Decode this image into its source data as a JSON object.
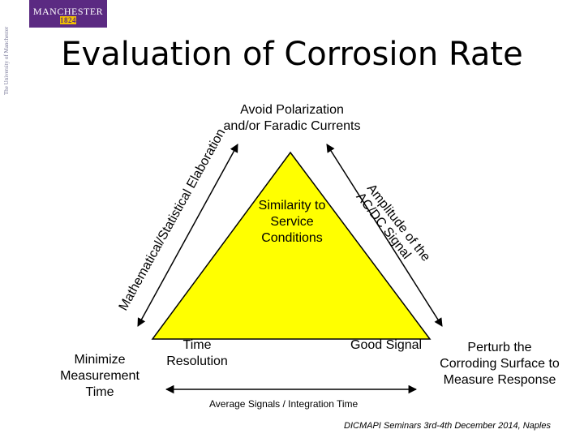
{
  "logo": {
    "wordmark": "MANCHESTER",
    "year": "1824"
  },
  "logo_side_text": "The University of Manchester",
  "title": "Evaluation of Corrosion Rate",
  "top_label": [
    "Avoid Polarization",
    "and/or  Faradic Currents"
  ],
  "center_label": [
    "Similarity to",
    "Service",
    "Conditions"
  ],
  "left_edge_label": "Mathematical/Statistical Elaboration",
  "right_edge_label": [
    "Amplitude of the",
    "AC/DC Signal"
  ],
  "bottom_left_vertex": [
    "Time",
    "Resolution"
  ],
  "bottom_right_vertex": "Good Signal",
  "bottom_edge_label": "Average Signals / Integration Time",
  "left_corner_label": [
    "Minimize",
    "Measurement",
    "Time"
  ],
  "right_corner_label": [
    "Perturb the",
    "Corroding Surface to",
    "Measure Response"
  ],
  "footer": "DICMAPI Seminars 3rd-4th December 2014, Naples",
  "colors": {
    "triangle_fill": "#ffff00",
    "logo_purple": "#5b2a82",
    "logo_gold": "#f2c100"
  }
}
